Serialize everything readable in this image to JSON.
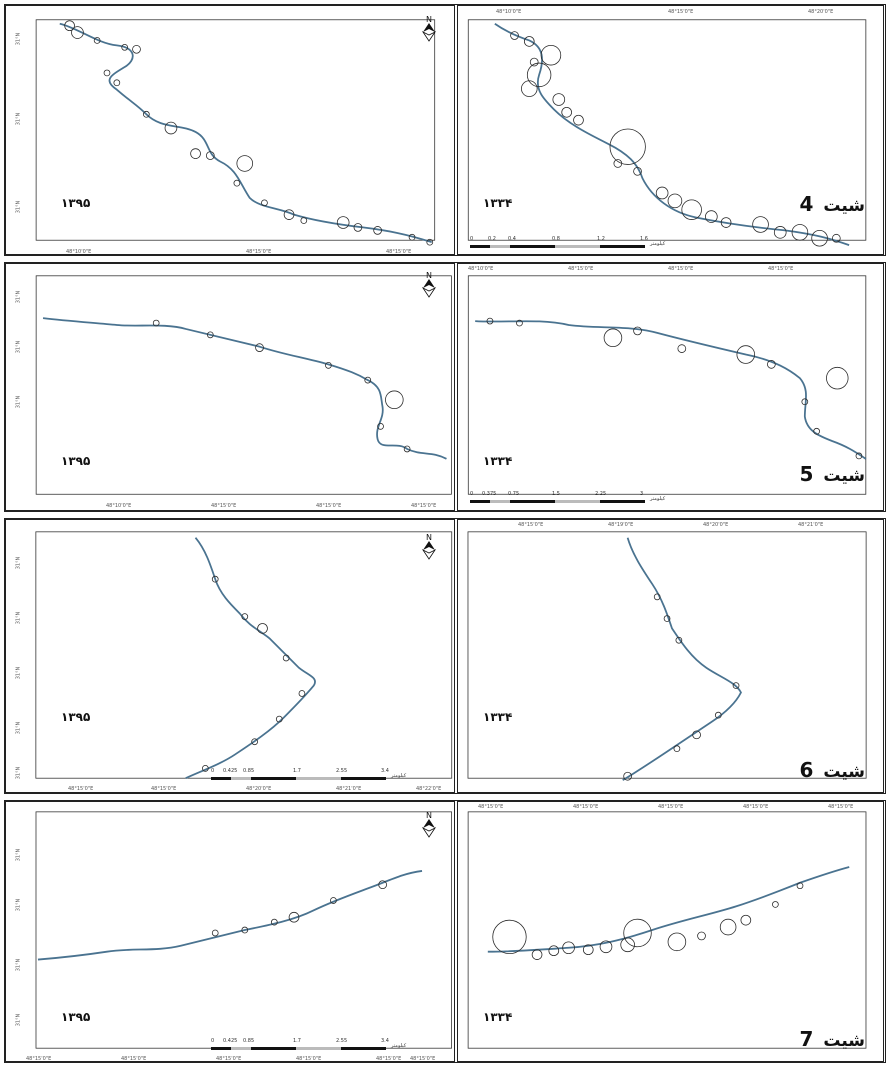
{
  "sheets": [
    {
      "sheet_label": "شیت",
      "sheet_number": "4",
      "left_year": "۱۳۹۵",
      "right_year": "۱۳۳۴",
      "x_ticks_left": [
        "48°10'0\"E",
        "48°15'0\"E",
        "48°15'0\"E"
      ],
      "x_ticks_right": [
        "48°10'0\"E",
        "48°15'0\"E",
        "48°20'0\"E"
      ],
      "y_ticks": [
        "31°N",
        "31°N",
        "31°N"
      ],
      "scale_labels": [
        "0",
        "0.2",
        "0.4",
        "0.8",
        "1.2",
        "1.6"
      ],
      "scale_unit": "کیلومتر"
    },
    {
      "sheet_label": "شیت",
      "sheet_number": "5",
      "left_year": "۱۳۹۵",
      "right_year": "۱۳۳۴",
      "x_ticks_left": [
        "48°10'0\"E",
        "48°15'0\"E",
        "48°15'0\"E",
        "48°15'0\"E"
      ],
      "x_ticks_right": [
        "48°10'0\"E",
        "48°15'0\"E",
        "48°15'0\"E",
        "48°15'0\"E"
      ],
      "y_ticks": [
        "31°N",
        "31°N",
        "31°N"
      ],
      "scale_labels": [
        "0",
        "0.375",
        "0.75",
        "1.5",
        "2.25",
        "3"
      ],
      "scale_unit": "کیلومتر"
    },
    {
      "sheet_label": "شیت",
      "sheet_number": "6",
      "left_year": "۱۳۹۵",
      "right_year": "۱۳۳۴",
      "x_ticks_left": [
        "48°15'0\"E",
        "48°15'0\"E",
        "48°20'0\"E",
        "48°21'0\"E",
        "48°22'0\"E"
      ],
      "x_ticks_right": [
        "48°15'0\"E",
        "48°19'0\"E",
        "48°20'0\"E",
        "48°21'0\"E"
      ],
      "y_ticks": [
        "31°N",
        "31°N",
        "31°N",
        "31°N",
        "31°N"
      ],
      "scale_labels": [
        "0",
        "0.425",
        "0.85",
        "1.7",
        "2.55",
        "3.4"
      ],
      "scale_unit": "کیلومتر"
    },
    {
      "sheet_label": "شیت",
      "sheet_number": "7",
      "left_year": "۱۳۹۵",
      "right_year": "۱۳۳۴",
      "x_ticks_left": [
        "48°15'0\"E",
        "48°15'0\"E",
        "48°15'0\"E",
        "48°15'0\"E",
        "48°15'0\"E",
        "48°15'0\"E"
      ],
      "x_ticks_right": [
        "48°15'0\"E",
        "48°15'0\"E",
        "48°15'0\"E",
        "48°15'0\"E",
        "48°15'0\"E"
      ],
      "y_ticks": [
        "31°N",
        "31°N",
        "31°N",
        "31°N"
      ],
      "scale_labels": [
        "0",
        "0.425",
        "0.85",
        "1.7",
        "2.55",
        "3.4"
      ],
      "scale_unit": "کیلومتر"
    }
  ],
  "north_arrow_label": "N",
  "colors": {
    "river": "#4a7390",
    "circle": "#2b2b2b",
    "frame": "#222222"
  },
  "icons": [
    "north-arrow-icon"
  ]
}
